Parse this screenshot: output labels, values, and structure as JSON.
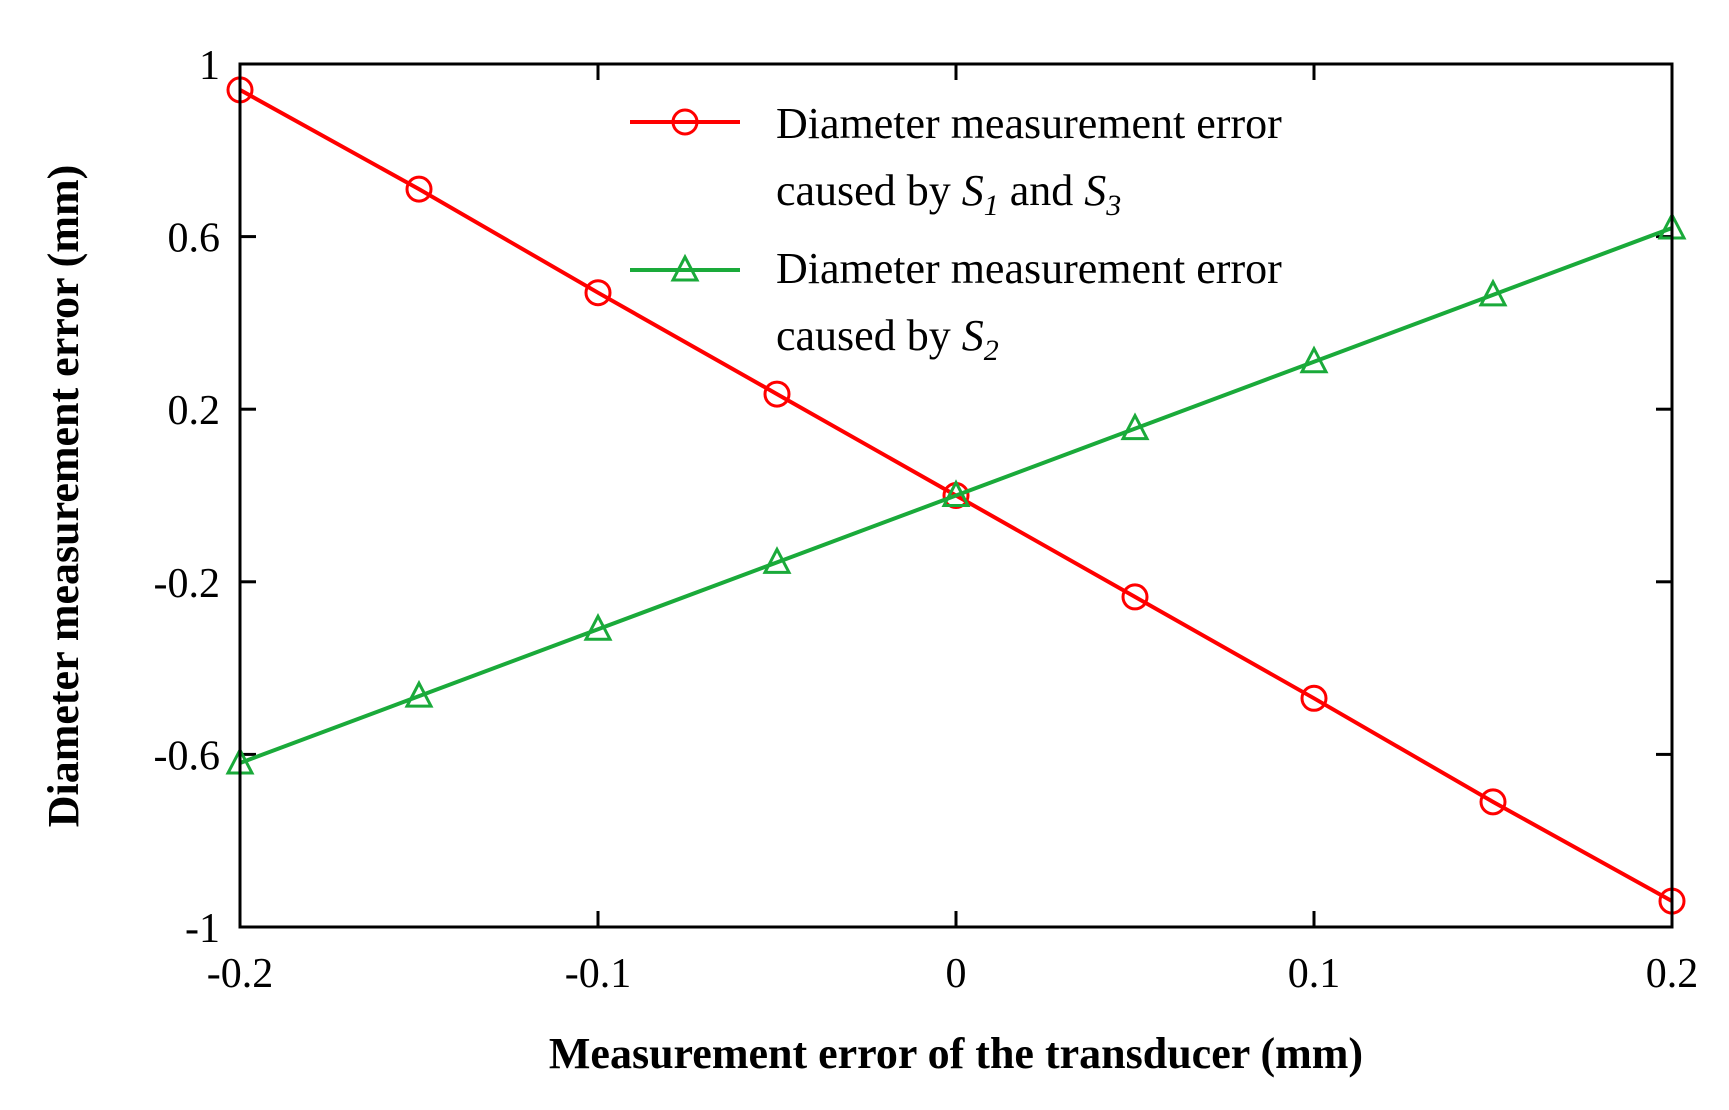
{
  "chart_data": {
    "type": "line",
    "xlabel": "Measurement error of the transducer (mm)",
    "ylabel": "Diameter measurement error (mm)",
    "xlim": [
      -0.2,
      0.2
    ],
    "ylim": [
      -1,
      1
    ],
    "xticks": [
      -0.2,
      -0.1,
      0,
      0.1,
      0.2
    ],
    "xtick_labels": [
      "-0.2",
      "-0.1",
      "0",
      "0.1",
      "0.2"
    ],
    "yticks": [
      1,
      0.6,
      0.2,
      -0.2,
      -0.6,
      -1
    ],
    "ytick_labels": [
      "1",
      "0.6",
      "0.2",
      "-0.2",
      "-0.6",
      "-1"
    ],
    "grid": false,
    "legend_position": "top-right",
    "x": [
      -0.2,
      -0.15,
      -0.1,
      -0.05,
      0,
      0.05,
      0.1,
      0.15,
      0.2
    ],
    "series": [
      {
        "name_line1": "Diameter measurement error",
        "name_line2_prefix": "caused by ",
        "name_line2_s1": "S",
        "name_line2_s1_sub": "1",
        "name_line2_mid": " and ",
        "name_line2_s3": "S",
        "name_line2_s3_sub": "3",
        "marker": "circle",
        "color": "#ff0000",
        "values": [
          0.94,
          0.71,
          0.47,
          0.235,
          0,
          -0.235,
          -0.47,
          -0.71,
          -0.94
        ]
      },
      {
        "name_line1": "Diameter measurement error",
        "name_line2_prefix": "caused by ",
        "name_line2_s": "S",
        "name_line2_s_sub": "2",
        "marker": "triangle",
        "color": "#1aaa3a",
        "values": [
          -0.62,
          -0.465,
          -0.31,
          -0.155,
          0,
          0.155,
          0.31,
          0.465,
          0.62
        ]
      }
    ]
  }
}
